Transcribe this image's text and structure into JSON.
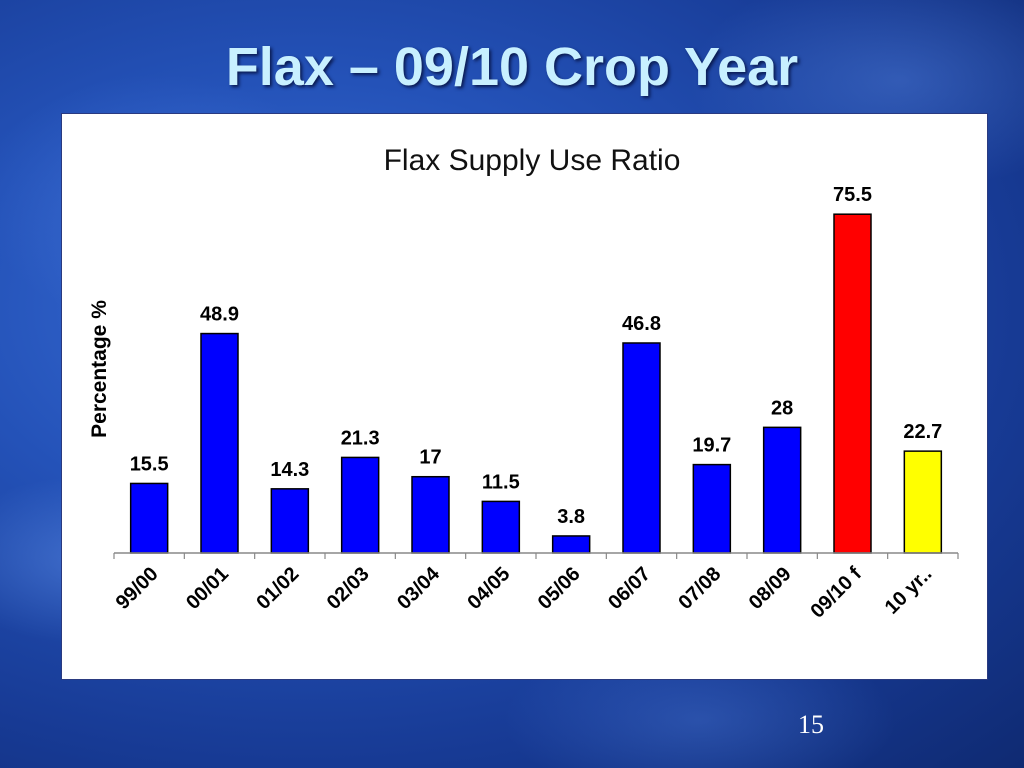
{
  "slide": {
    "title": "Flax – 09/10 Crop Year",
    "page_number": "15"
  },
  "colors": {
    "default_bar": "#0000ff",
    "highlight_forecast": "#ff0000",
    "highlight_average": "#ffff00"
  },
  "chart_data": {
    "type": "bar",
    "title": "Flax Supply Use Ratio",
    "ylabel": "Percentage %",
    "xlabel": "",
    "ylim": [
      0,
      80
    ],
    "grid": false,
    "categories": [
      "99/00",
      "00/01",
      "01/02",
      "02/03",
      "03/04",
      "04/05",
      "05/06",
      "06/07",
      "07/08",
      "08/09",
      "09/10 f",
      "10 yr.."
    ],
    "values": [
      15.5,
      48.9,
      14.3,
      21.3,
      17,
      11.5,
      3.8,
      46.8,
      19.7,
      28,
      75.5,
      22.7
    ],
    "value_labels": [
      "15.5",
      "48.9",
      "14.3",
      "21.3",
      "17",
      "11.5",
      "3.8",
      "46.8",
      "19.7",
      "28",
      "75.5",
      "22.7"
    ],
    "bar_colors": [
      "#0000ff",
      "#0000ff",
      "#0000ff",
      "#0000ff",
      "#0000ff",
      "#0000ff",
      "#0000ff",
      "#0000ff",
      "#0000ff",
      "#0000ff",
      "#ff0000",
      "#ffff00"
    ]
  }
}
